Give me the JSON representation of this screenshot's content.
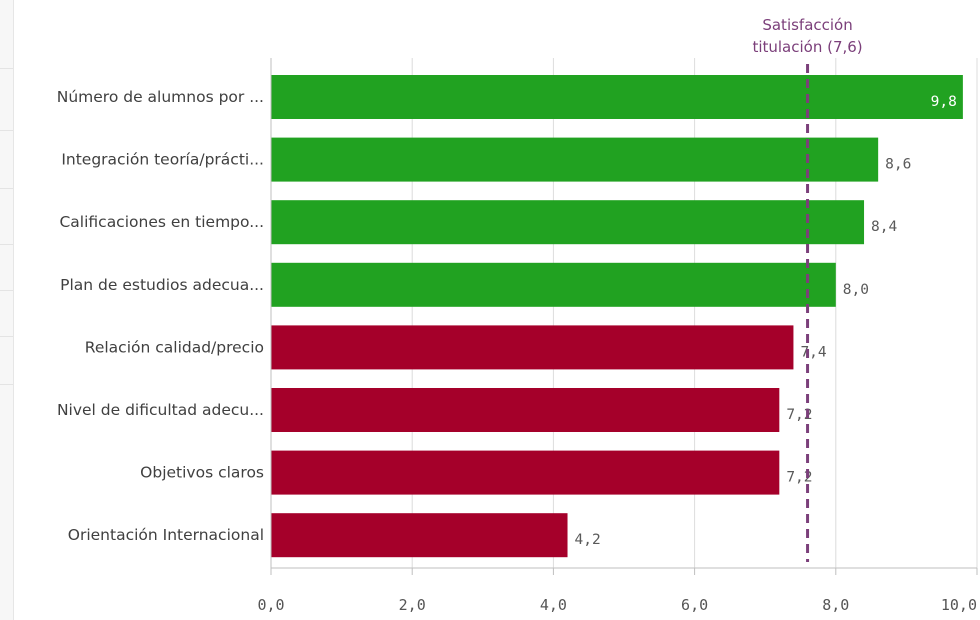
{
  "chart_data": {
    "type": "bar",
    "orientation": "horizontal",
    "categories": [
      "Número de alumnos por ...",
      "Integración teoría/prácti...",
      "Calificaciones en tiempo...",
      "Plan de estudios adecua...",
      "Relación calidad/precio",
      "Nivel de dificultad adecu...",
      "Objetivos claros",
      "Orientación Internacional"
    ],
    "values": [
      9.8,
      8.6,
      8.4,
      8.0,
      7.4,
      7.2,
      7.2,
      4.2
    ],
    "value_labels": [
      "9,8",
      "8,6",
      "8,4",
      "8,0",
      "7,4",
      "7,2",
      "7,2",
      "4,2"
    ],
    "xlim": [
      0,
      10
    ],
    "x_ticks": [
      0,
      2,
      4,
      6,
      8,
      10
    ],
    "x_tick_labels": [
      "0,0",
      "2,0",
      "4,0",
      "6,0",
      "8,0",
      "10,0"
    ],
    "grid": "vertical",
    "reference_line": {
      "value": 7.6,
      "label_line1": "Satisfacción",
      "label_line2": "titulación (7,6)",
      "style": "dashed",
      "color": "#7b3f7a"
    },
    "colors": {
      "above_reference": "#21a221",
      "below_reference": "#a5002a",
      "grid": "#dcdcdc",
      "axis": "#bfbfbf"
    }
  }
}
